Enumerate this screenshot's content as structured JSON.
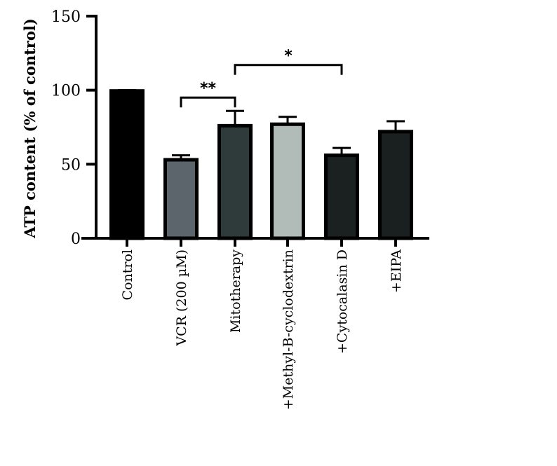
{
  "chart_data": {
    "type": "bar",
    "title": "",
    "xlabel": "",
    "ylabel": "ATP content (% of control)",
    "ylim": [
      0,
      150
    ],
    "yticks": [
      0,
      50,
      100,
      150
    ],
    "categories": [
      "Control",
      "VCR (200 µM)",
      "Mitotherapy",
      "+Methyl-B-cyclodextrin",
      "+Cytocalasin D",
      "+EIPA"
    ],
    "values": [
      99.5,
      53,
      76,
      77,
      56,
      72
    ],
    "error_upper": [
      100,
      56,
      86,
      82,
      61,
      79
    ],
    "bar_colors": [
      "#000000",
      "#5c656b",
      "#2f3b3a",
      "#b1bbb8",
      "#1b2020",
      "#1a2020"
    ],
    "bar_edge": "#000000",
    "grid": false,
    "significance": [
      {
        "from": 1,
        "to": 2,
        "label": "**",
        "level": 95
      },
      {
        "from": 2,
        "to": 4,
        "label": "*",
        "level": 117
      }
    ]
  }
}
